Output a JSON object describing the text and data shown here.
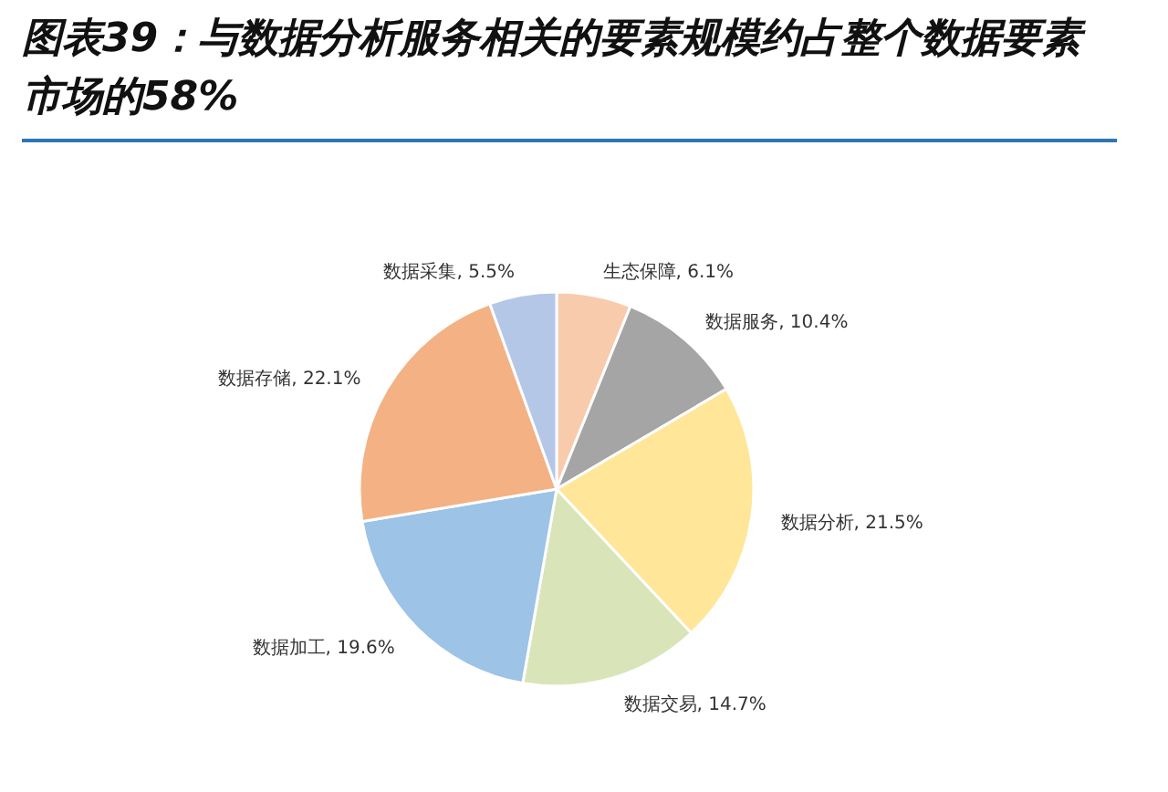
{
  "chart_data": {
    "type": "pie",
    "title": "图表39：与数据分析服务相关的要素规模约占整个数据要素市场的58%",
    "categories": [
      "生态保障",
      "数据服务",
      "数据分析",
      "数据交易",
      "数据加工",
      "数据存储",
      "数据采集"
    ],
    "values": [
      6.1,
      10.4,
      21.5,
      14.7,
      19.6,
      22.1,
      5.5
    ],
    "colors": [
      "#f8cbad",
      "#a5a5a5",
      "#ffe699",
      "#d9e5b9",
      "#9dc3e6",
      "#f4b183",
      "#b4c7e7"
    ],
    "value_labels": [
      ", 6.1%",
      ", 10.4%",
      ", 21.5%",
      ", 14.7%",
      ", 19.6%",
      ", 22.1%",
      ", 5.5%"
    ],
    "legend": false
  }
}
